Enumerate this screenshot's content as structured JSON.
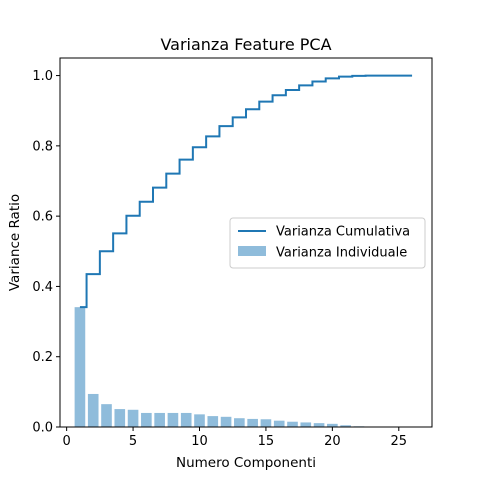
{
  "chart_data": {
    "type": "bar",
    "title": "Varianza Feature PCA",
    "xlabel": "Numero Componenti",
    "ylabel": "Variance Ratio",
    "xlim": [
      -0.5,
      27.5
    ],
    "ylim": [
      0,
      1.05
    ],
    "x_ticks": [
      0,
      5,
      10,
      15,
      20,
      25
    ],
    "y_ticks": [
      0.0,
      0.2,
      0.4,
      0.6,
      0.8,
      1.0
    ],
    "x_tick_labels": [
      "0",
      "5",
      "10",
      "15",
      "20",
      "25"
    ],
    "y_tick_labels": [
      "0.0",
      "0.2",
      "0.4",
      "0.6",
      "0.8",
      "1.0"
    ],
    "legend_position": "center-right",
    "x": [
      1,
      2,
      3,
      4,
      5,
      6,
      7,
      8,
      9,
      10,
      11,
      12,
      13,
      14,
      15,
      16,
      17,
      18,
      19,
      20,
      21,
      22,
      23,
      24,
      25,
      26
    ],
    "series": [
      {
        "name": "Varianza Cumulativa",
        "kind": "step",
        "color": "#1f77b4",
        "values": [
          0.341,
          0.435,
          0.5,
          0.551,
          0.601,
          0.641,
          0.681,
          0.721,
          0.761,
          0.796,
          0.827,
          0.856,
          0.881,
          0.904,
          0.926,
          0.944,
          0.959,
          0.972,
          0.983,
          0.992,
          0.997,
          0.999,
          1.0,
          1.0,
          1.0,
          1.0
        ]
      },
      {
        "name": "Varianza Individuale",
        "kind": "bar",
        "color": "#8fbcdb",
        "values": [
          0.341,
          0.094,
          0.065,
          0.051,
          0.049,
          0.04,
          0.04,
          0.04,
          0.04,
          0.036,
          0.031,
          0.029,
          0.025,
          0.023,
          0.022,
          0.018,
          0.015,
          0.013,
          0.011,
          0.009,
          0.005,
          0.002,
          0.001,
          0.0,
          0.0,
          0.0
        ]
      }
    ]
  }
}
